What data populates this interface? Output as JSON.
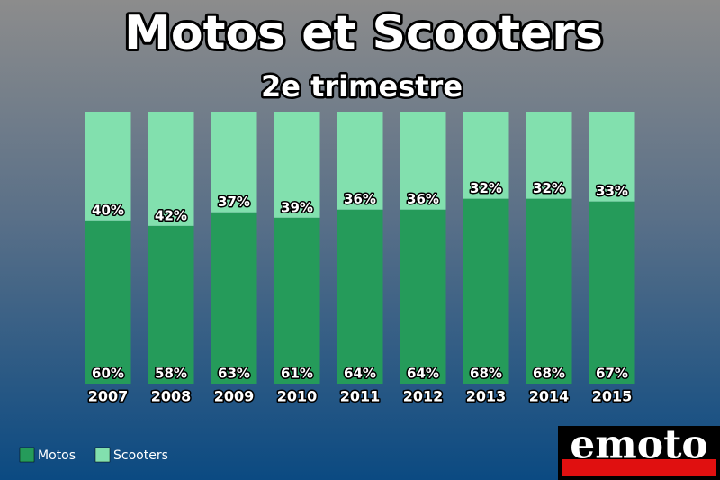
{
  "chart_data": {
    "type": "bar",
    "stacked": true,
    "title": "Motos et Scooters",
    "subtitle": "2e trimestre",
    "categories": [
      "2007",
      "2008",
      "2009",
      "2010",
      "2011",
      "2012",
      "2013",
      "2014",
      "2015"
    ],
    "value_suffix_labels": null,
    "series": [
      {
        "name": "Motos",
        "color": "#259b5a",
        "values": [
          60,
          58,
          63,
          61,
          64,
          64,
          68,
          68,
          67
        ],
        "value_labels": [
          "60%",
          "58%",
          "63%",
          "61%",
          "64%",
          "64%",
          "68%",
          "68%",
          "67%"
        ]
      },
      {
        "name": "Scooters",
        "color": "#82e0ae",
        "values": [
          40,
          42,
          37,
          39,
          36,
          36,
          32,
          32,
          33
        ],
        "value_labels": [
          "40%",
          "42%",
          "37%",
          "39%",
          "36%",
          "36%",
          "32%",
          "32%",
          "33%"
        ]
      }
    ],
    "legend": "bottom-left"
  },
  "brand": "emoto"
}
